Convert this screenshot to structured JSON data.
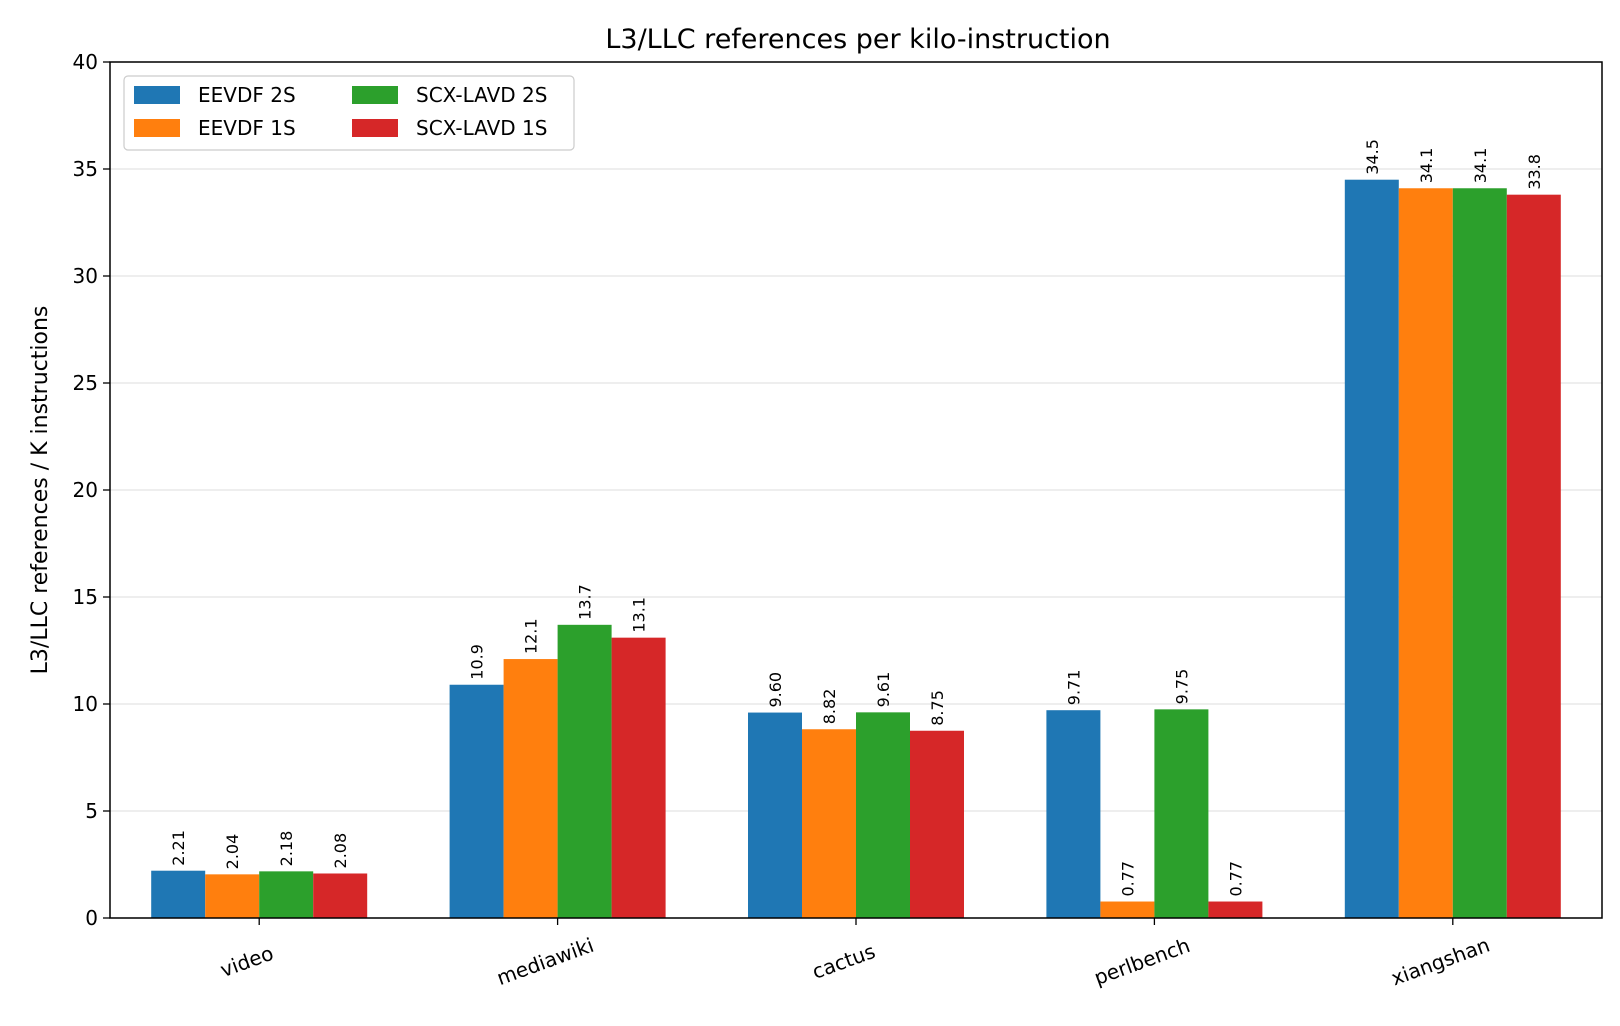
{
  "chart_data": {
    "type": "bar",
    "title": "L3/LLC references per kilo-instruction",
    "xlabel": "",
    "ylabel": "L3/LLC references / K instructions",
    "categories": [
      "video",
      "mediawiki",
      "cactus",
      "perlbench",
      "xiangshan"
    ],
    "series": [
      {
        "name": "EEVDF 2S",
        "color": "#1f77b4",
        "values": [
          2.21,
          10.9,
          9.6,
          9.71,
          34.5
        ],
        "labels": [
          "2.21",
          "10.9",
          "9.60",
          "9.71",
          "34.5"
        ]
      },
      {
        "name": "EEVDF 1S",
        "color": "#ff7f0e",
        "values": [
          2.04,
          12.1,
          8.82,
          0.77,
          34.1
        ],
        "labels": [
          "2.04",
          "12.1",
          "8.82",
          "0.77",
          "34.1"
        ]
      },
      {
        "name": "SCX-LAVD 2S",
        "color": "#2ca02c",
        "values": [
          2.18,
          13.7,
          9.61,
          9.75,
          34.1
        ],
        "labels": [
          "2.18",
          "13.7",
          "9.61",
          "9.75",
          "34.1"
        ]
      },
      {
        "name": "SCX-LAVD 1S",
        "color": "#d62728",
        "values": [
          2.08,
          13.1,
          8.75,
          0.77,
          33.8
        ],
        "labels": [
          "2.08",
          "13.1",
          "8.75",
          "0.77",
          "33.8"
        ]
      }
    ],
    "ylim": [
      0,
      40
    ],
    "yticks": [
      0,
      5,
      10,
      15,
      20,
      25,
      30,
      35,
      40
    ],
    "grid": "y",
    "legend_position": "top-left",
    "legend_columns": 2
  }
}
